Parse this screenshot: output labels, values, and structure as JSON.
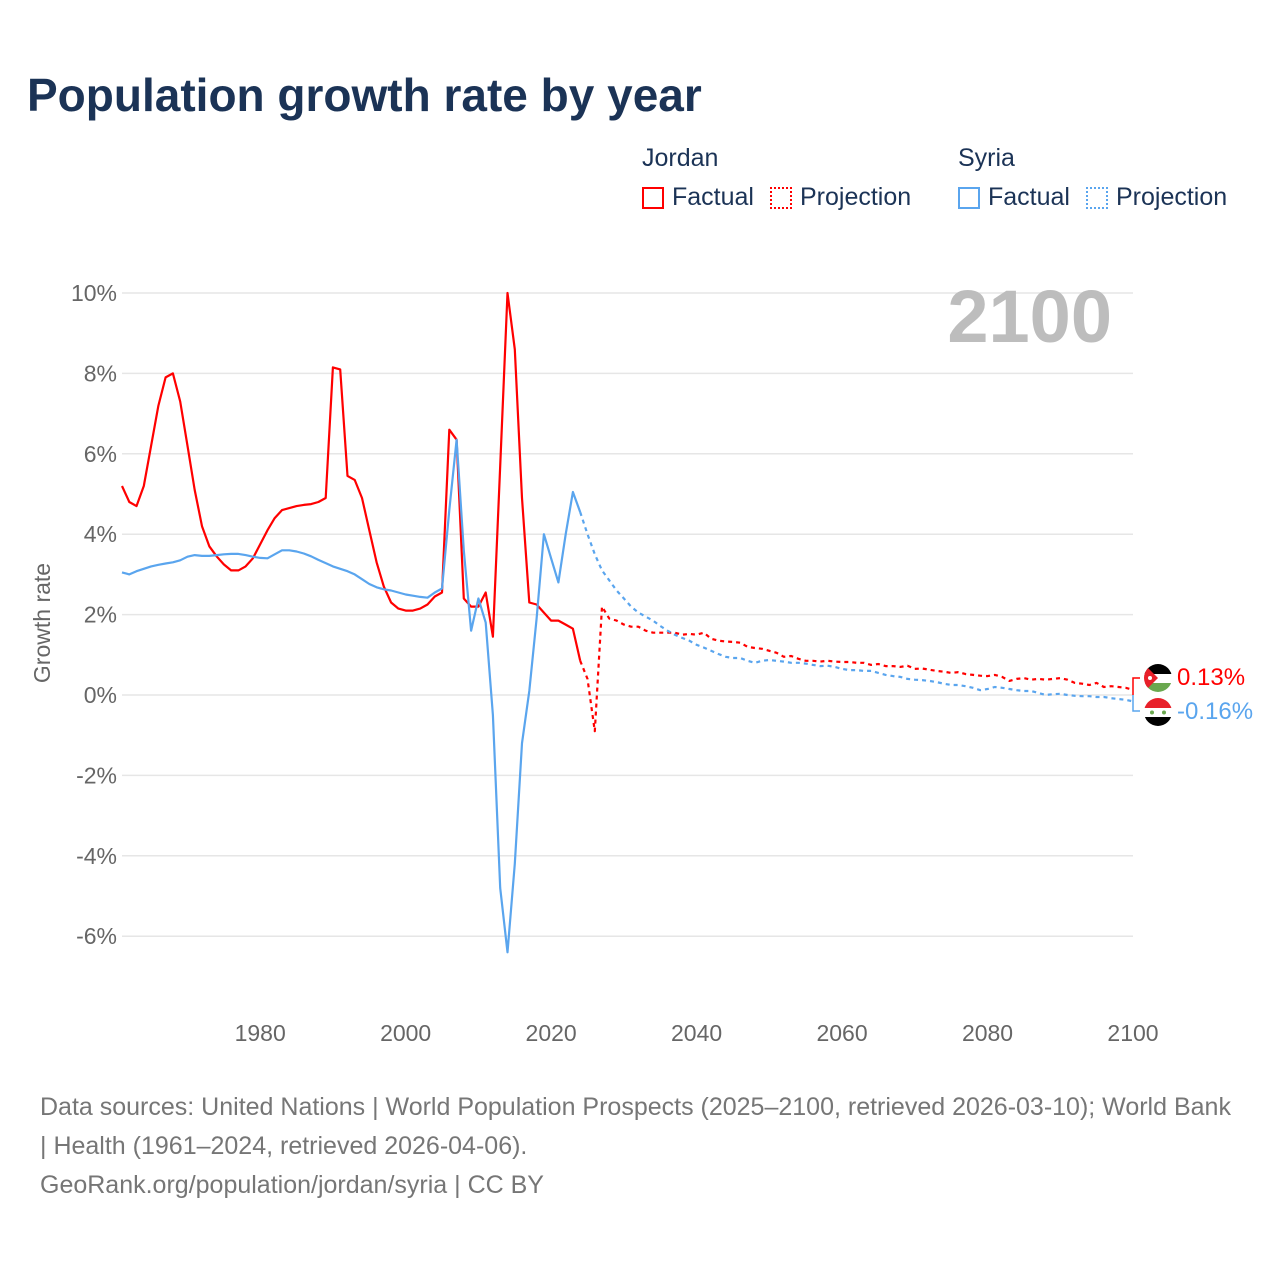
{
  "title": "Population growth rate by year",
  "legend": {
    "groups": [
      {
        "name": "Jordan",
        "factual": "Factual",
        "projection": "Projection",
        "color": "#ff0000"
      },
      {
        "name": "Syria",
        "factual": "Factual",
        "projection": "Projection",
        "color": "#5aa5ee"
      }
    ]
  },
  "year_label": "2100",
  "end_labels": {
    "jordan": "0.13%",
    "syria": "-0.16%"
  },
  "flags": {
    "jordan": "jordan-flag-icon",
    "syria": "syria-flag-icon"
  },
  "footer": {
    "sources": "Data sources: United Nations | World Population Prospects (2025–2100, retrieved 2026-03-10); World Bank | Health (1961–2024, retrieved 2026-04-06).",
    "credit": "GeoRank.org/population/jordan/syria | CC BY"
  },
  "chart_data": {
    "type": "line",
    "title": "Population growth rate by year",
    "xlabel": "",
    "ylabel": "Growth rate",
    "xlim": [
      1961,
      2100
    ],
    "ylim": [
      -7.5,
      10
    ],
    "xticks": [
      {
        "v": 1980,
        "label": "1980"
      },
      {
        "v": 2000,
        "label": "2000"
      },
      {
        "v": 2020,
        "label": "2020"
      },
      {
        "v": 2040,
        "label": "2040"
      },
      {
        "v": 2060,
        "label": "2060"
      },
      {
        "v": 2080,
        "label": "2080"
      },
      {
        "v": 2100,
        "label": "2100"
      }
    ],
    "yticks": [
      {
        "v": 10,
        "label": "10%"
      },
      {
        "v": 8,
        "label": "8%"
      },
      {
        "v": 6,
        "label": "6%"
      },
      {
        "v": 4,
        "label": "4%"
      },
      {
        "v": 2,
        "label": "2%"
      },
      {
        "v": 0,
        "label": "0%"
      },
      {
        "v": -2,
        "label": "-2%"
      },
      {
        "v": -4,
        "label": "-4%"
      },
      {
        "v": -6,
        "label": "-6%"
      }
    ],
    "grid": true,
    "legend_position": "top-right",
    "series": [
      {
        "name": "Jordan Factual",
        "color": "#ff0000",
        "dashed": false,
        "start": 1961,
        "values": [
          5.2,
          4.8,
          4.7,
          5.2,
          6.2,
          7.2,
          7.9,
          8.0,
          7.3,
          6.2,
          5.1,
          4.2,
          3.7,
          3.45,
          3.25,
          3.1,
          3.1,
          3.2,
          3.4,
          3.75,
          4.1,
          4.4,
          4.6,
          4.65,
          4.7,
          4.73,
          4.75,
          4.8,
          4.9,
          8.15,
          8.1,
          5.45,
          5.35,
          4.9,
          4.1,
          3.3,
          2.7,
          2.3,
          2.15,
          2.1,
          2.1,
          2.15,
          2.25,
          2.45,
          2.55,
          6.6,
          6.35,
          2.4,
          2.2,
          2.2,
          2.55,
          1.45,
          5.7,
          10.0,
          8.6,
          4.9,
          2.3,
          2.25,
          2.05,
          1.85,
          1.85,
          1.75,
          1.65,
          0.85
        ]
      },
      {
        "name": "Jordan Projection",
        "color": "#ff0000",
        "dashed": true,
        "start": 2024,
        "values": [
          0.85,
          0.4,
          -0.9,
          2.2,
          1.9,
          1.85,
          1.75,
          1.7,
          1.7,
          1.6,
          1.55,
          1.55,
          1.55,
          1.55,
          1.5,
          1.52,
          1.5,
          1.55,
          1.4,
          1.35,
          1.33,
          1.32,
          1.3,
          1.2,
          1.17,
          1.15,
          1.1,
          1.05,
          0.95,
          0.97,
          0.9,
          0.85,
          0.85,
          0.83,
          0.85,
          0.83,
          0.82,
          0.82,
          0.8,
          0.8,
          0.75,
          0.77,
          0.72,
          0.72,
          0.7,
          0.73,
          0.65,
          0.66,
          0.63,
          0.6,
          0.58,
          0.55,
          0.57,
          0.52,
          0.5,
          0.48,
          0.47,
          0.5,
          0.45,
          0.35,
          0.4,
          0.42,
          0.38,
          0.4,
          0.38,
          0.4,
          0.42,
          0.38,
          0.3,
          0.28,
          0.25,
          0.3,
          0.2,
          0.22,
          0.2,
          0.18,
          0.13
        ]
      },
      {
        "name": "Syria Factual",
        "color": "#5aa5ee",
        "dashed": false,
        "start": 1961,
        "values": [
          3.05,
          3.0,
          3.08,
          3.14,
          3.2,
          3.24,
          3.27,
          3.3,
          3.35,
          3.44,
          3.48,
          3.46,
          3.46,
          3.48,
          3.5,
          3.51,
          3.51,
          3.48,
          3.44,
          3.41,
          3.4,
          3.5,
          3.6,
          3.6,
          3.57,
          3.52,
          3.45,
          3.36,
          3.28,
          3.2,
          3.14,
          3.08,
          3.0,
          2.88,
          2.76,
          2.68,
          2.63,
          2.6,
          2.55,
          2.5,
          2.47,
          2.44,
          2.42,
          2.55,
          2.65,
          4.6,
          6.35,
          3.6,
          1.6,
          2.4,
          1.8,
          -0.5,
          -4.8,
          -6.4,
          -4.2,
          -1.2,
          0.1,
          1.9,
          4.0,
          3.4,
          2.8,
          4.0,
          5.05,
          4.55
        ]
      },
      {
        "name": "Syria Projection",
        "color": "#5aa5ee",
        "dashed": true,
        "start": 2024,
        "values": [
          4.55,
          4.0,
          3.5,
          3.1,
          2.85,
          2.6,
          2.4,
          2.2,
          2.05,
          1.95,
          1.85,
          1.72,
          1.6,
          1.5,
          1.42,
          1.35,
          1.25,
          1.18,
          1.1,
          1.02,
          0.95,
          0.92,
          0.92,
          0.85,
          0.8,
          0.85,
          0.87,
          0.85,
          0.83,
          0.8,
          0.8,
          0.78,
          0.75,
          0.72,
          0.73,
          0.7,
          0.65,
          0.62,
          0.62,
          0.6,
          0.6,
          0.55,
          0.5,
          0.47,
          0.45,
          0.4,
          0.38,
          0.37,
          0.35,
          0.32,
          0.28,
          0.25,
          0.25,
          0.22,
          0.18,
          0.12,
          0.15,
          0.2,
          0.18,
          0.15,
          0.12,
          0.1,
          0.1,
          0.05,
          0.0,
          0.02,
          0.03,
          0.0,
          -0.02,
          -0.03,
          -0.03,
          -0.05,
          -0.05,
          -0.08,
          -0.1,
          -0.12,
          -0.16
        ]
      }
    ]
  }
}
